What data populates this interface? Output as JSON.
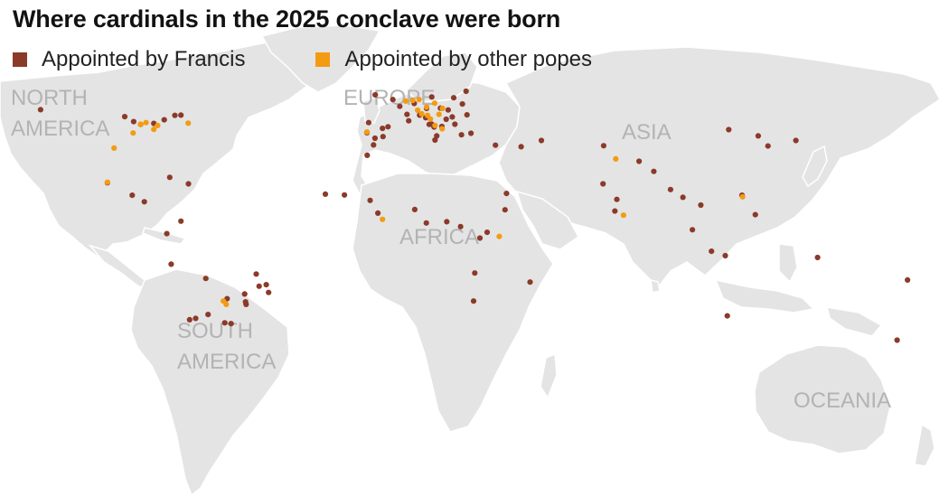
{
  "title": "Where cardinals in the 2025 conclave were born",
  "legend": [
    {
      "label": "Appointed by Francis",
      "color": "#8b3a2a"
    },
    {
      "label": "Appointed by other popes",
      "color": "#f39c12"
    }
  ],
  "continents": [
    {
      "id": "north-america",
      "lines": [
        "NORTH",
        "AMERICA"
      ]
    },
    {
      "id": "europe",
      "lines": [
        "EUROPE"
      ]
    },
    {
      "id": "asia",
      "lines": [
        "ASIA"
      ]
    },
    {
      "id": "africa",
      "lines": [
        "AFRICA"
      ]
    },
    {
      "id": "south-america",
      "lines": [
        "SOUTH",
        "AMERICA"
      ]
    },
    {
      "id": "oceania",
      "lines": [
        "OCEANIA"
      ]
    }
  ],
  "birthplaces": {
    "francis": [
      [
        -122.3,
        47.6
      ],
      [
        -93.1,
        44.9
      ],
      [
        -90.0,
        43.0
      ],
      [
        -87.6,
        41.9
      ],
      [
        -83.0,
        42.3
      ],
      [
        -79.4,
        43.7
      ],
      [
        -75.7,
        45.4
      ],
      [
        -73.6,
        45.5
      ],
      [
        -99.1,
        19.4
      ],
      [
        -77.5,
        21.5
      ],
      [
        -71.0,
        19.0
      ],
      [
        -90.5,
        14.6
      ],
      [
        -86.3,
        12.1
      ],
      [
        -73.6,
        4.6
      ],
      [
        -78.5,
        -0.2
      ],
      [
        -77.0,
        -12.0
      ],
      [
        -65.0,
        -17.5
      ],
      [
        -47.5,
        -15.8
      ],
      [
        -46.5,
        -20.5
      ],
      [
        -44.0,
        -19.9
      ],
      [
        -43.2,
        -22.9
      ],
      [
        -51.5,
        -23.5
      ],
      [
        -51.2,
        -26.5
      ],
      [
        -51.0,
        -27.5
      ],
      [
        -57.6,
        -25.3
      ],
      [
        -64.2,
        -31.4
      ],
      [
        -70.6,
        -33.4
      ],
      [
        -68.5,
        -32.9
      ],
      [
        -58.4,
        -34.6
      ],
      [
        -56.2,
        -34.9
      ],
      [
        -23.5,
        15.0
      ],
      [
        -9.1,
        38.7
      ],
      [
        -6.3,
        36.6
      ],
      [
        -3.7,
        40.4
      ],
      [
        -8.5,
        42.6
      ],
      [
        -6.2,
        53.3
      ],
      [
        -0.1,
        51.5
      ],
      [
        2.3,
        48.9
      ],
      [
        4.8,
        45.8
      ],
      [
        5.4,
        43.3
      ],
      [
        -3.5,
        37.2
      ],
      [
        -1.8,
        41.0
      ],
      [
        7.3,
        50.0
      ],
      [
        9.2,
        45.5
      ],
      [
        11.3,
        44.5
      ],
      [
        12.5,
        41.9
      ],
      [
        13.4,
        42.0
      ],
      [
        14.2,
        40.9
      ],
      [
        16.9,
        41.1
      ],
      [
        15.1,
        37.5
      ],
      [
        14.5,
        35.9
      ],
      [
        16.4,
        48.2
      ],
      [
        19.1,
        47.5
      ],
      [
        21.0,
        52.2
      ],
      [
        25.3,
        54.7
      ],
      [
        25.6,
        45.6
      ],
      [
        18.4,
        43.9
      ],
      [
        20.5,
        44.8
      ],
      [
        21.4,
        42.0
      ],
      [
        23.7,
        37.9
      ],
      [
        27.0,
        38.5
      ],
      [
        35.5,
        33.9
      ],
      [
        44.4,
        33.3
      ],
      [
        24.0,
        49.8
      ],
      [
        13.4,
        52.5
      ],
      [
        11.6,
        48.1
      ],
      [
        -9.0,
        30.0
      ],
      [
        -6.8,
        34.0
      ],
      [
        -16.9,
        14.7
      ],
      [
        -8.0,
        12.6
      ],
      [
        -5.3,
        7.7
      ],
      [
        7.5,
        9.1
      ],
      [
        11.5,
        3.9
      ],
      [
        18.6,
        4.4
      ],
      [
        23.4,
        2.5
      ],
      [
        32.6,
        0.3
      ],
      [
        38.8,
        9.0
      ],
      [
        39.3,
        15.3
      ],
      [
        30.1,
        -1.9
      ],
      [
        28.3,
        -15.4
      ],
      [
        27.9,
        -26.2
      ],
      [
        47.5,
        -18.9
      ],
      [
        51.4,
        35.7
      ],
      [
        72.8,
        19.0
      ],
      [
        77.6,
        13.0
      ],
      [
        76.9,
        8.5
      ],
      [
        73.0,
        33.7
      ],
      [
        85.3,
        27.7
      ],
      [
        90.4,
        23.8
      ],
      [
        96.2,
        16.8
      ],
      [
        100.5,
        13.8
      ],
      [
        106.7,
        10.8
      ],
      [
        103.8,
        1.3
      ],
      [
        110.4,
        -7.0
      ],
      [
        115.2,
        -8.7
      ],
      [
        121.0,
        14.6
      ],
      [
        125.6,
        7.1
      ],
      [
        126.6,
        37.5
      ],
      [
        130.0,
        33.6
      ],
      [
        139.7,
        35.7
      ],
      [
        116.4,
        39.9
      ],
      [
        115.9,
        -31.9
      ],
      [
        147.2,
        -9.4
      ],
      [
        178.4,
        -18.1
      ],
      [
        174.8,
        -41.3
      ]
    ],
    "other": [
      [
        -96.8,
        32.8
      ],
      [
        -90.2,
        38.6
      ],
      [
        -87.6,
        42.0
      ],
      [
        -85.7,
        42.6
      ],
      [
        -83.0,
        40.0
      ],
      [
        -81.7,
        41.5
      ],
      [
        -71.1,
        42.4
      ],
      [
        -99.1,
        19.6
      ],
      [
        -3.7,
        5.3
      ],
      [
        36.8,
        -1.3
      ],
      [
        -57.9,
        -27.5
      ],
      [
        -58.9,
        -26.2
      ],
      [
        -9.1,
        39.0
      ],
      [
        4.4,
        50.9
      ],
      [
        6.8,
        51.2
      ],
      [
        9.0,
        51.5
      ],
      [
        11.6,
        48.6
      ],
      [
        8.5,
        47.4
      ],
      [
        9.9,
        46.0
      ],
      [
        11.9,
        45.4
      ],
      [
        14.4,
        50.1
      ],
      [
        17.1,
        48.1
      ],
      [
        15.9,
        45.8
      ],
      [
        12.9,
        44.0
      ],
      [
        14.5,
        41.5
      ],
      [
        17.0,
        40.2
      ],
      [
        77.2,
        28.6
      ],
      [
        79.9,
        6.9
      ],
      [
        121.2,
        14.0
      ]
    ]
  }
}
